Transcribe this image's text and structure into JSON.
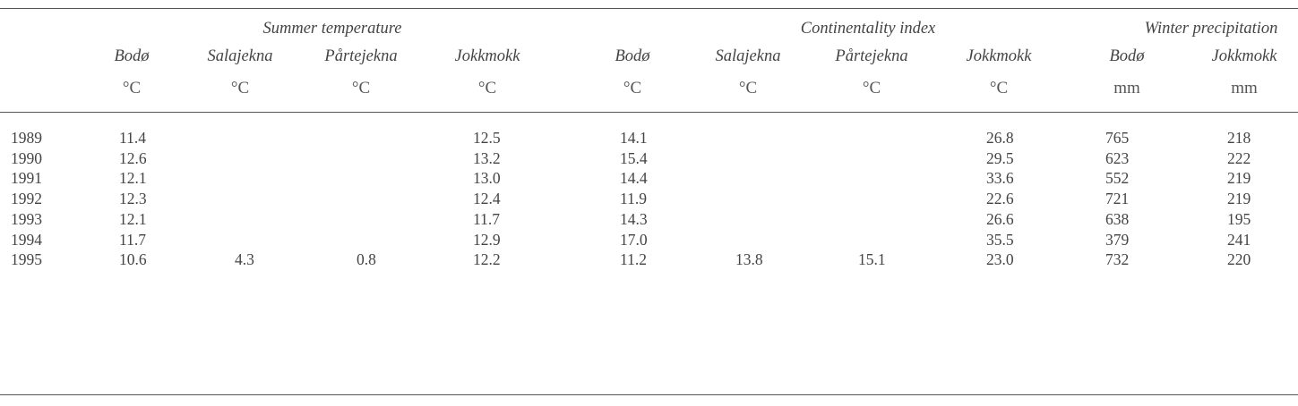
{
  "groups": [
    {
      "label": "Summer temperature"
    },
    {
      "label": "Continentality index"
    },
    {
      "label": "Winter precipitation"
    }
  ],
  "columns": [
    {
      "name": "Bodø",
      "unit": "°C"
    },
    {
      "name": "Salajekna",
      "unit": "°C"
    },
    {
      "name": "Pårtejekna",
      "unit": "°C"
    },
    {
      "name": "Jokkmokk",
      "unit": "°C"
    },
    {
      "name": "Bodø",
      "unit": "°C"
    },
    {
      "name": "Salajekna",
      "unit": "°C"
    },
    {
      "name": "Pårtejekna",
      "unit": "°C"
    },
    {
      "name": "Jokkmokk",
      "unit": "°C"
    },
    {
      "name": "Bodø",
      "unit": "mm"
    },
    {
      "name": "Jokkmokk",
      "unit": "mm"
    }
  ],
  "rows": [
    {
      "year": "1989",
      "values": [
        "11.4",
        "",
        "",
        "12.5",
        "14.1",
        "",
        "",
        "26.8",
        "765",
        "218"
      ]
    },
    {
      "year": "1990",
      "values": [
        "12.6",
        "",
        "",
        "13.2",
        "15.4",
        "",
        "",
        "29.5",
        "623",
        "222"
      ]
    },
    {
      "year": "1991",
      "values": [
        "12.1",
        "",
        "",
        "13.0",
        "14.4",
        "",
        "",
        "33.6",
        "552",
        "219"
      ]
    },
    {
      "year": "1992",
      "values": [
        "12.3",
        "",
        "",
        "12.4",
        "11.9",
        "",
        "",
        "22.6",
        "721",
        "219"
      ]
    },
    {
      "year": "1993",
      "values": [
        "12.1",
        "",
        "",
        "11.7",
        "14.3",
        "",
        "",
        "26.6",
        "638",
        "195"
      ]
    },
    {
      "year": "1994",
      "values": [
        "11.7",
        "",
        "",
        "12.9",
        "17.0",
        "",
        "",
        "35.5",
        "379",
        "241"
      ]
    },
    {
      "year": "1995",
      "values": [
        "10.6",
        "4.3",
        "0.8",
        "12.2",
        "11.2",
        "13.8",
        "15.1",
        "23.0",
        "732",
        "220"
      ]
    }
  ]
}
